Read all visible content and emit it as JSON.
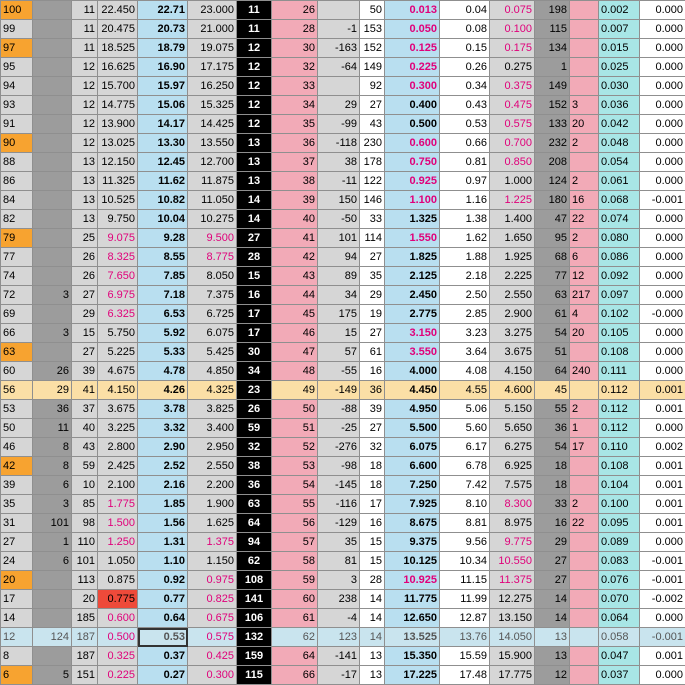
{
  "colors": {
    "orange_strike": "#f7a330",
    "blue_col": "#b9dff0",
    "gray_col": "#d6d6d6",
    "dark_gray_col": "#9c9c9c",
    "pink_col": "#f2aab7",
    "teal_col": "#a8e6e6",
    "strike_black": "#000000",
    "pink_text": "#e0007a",
    "current_row": "#fbdfa6",
    "red_cell": "#ee4a3a"
  },
  "ladder": {
    "rows": [
      {
        "c": [
          "100",
          "",
          "11",
          "22.450",
          "22.71",
          "23.000",
          "11",
          "26",
          "",
          "50",
          "0.013",
          "0.04",
          "0.075",
          "198",
          "",
          "0.002",
          "0.000"
        ],
        "hl": true,
        "pink": [
          10,
          12
        ]
      },
      {
        "c": [
          "99",
          "",
          "11",
          "20.475",
          "20.73",
          "21.000",
          "11",
          "28",
          "-1",
          "153",
          "0.050",
          "0.08",
          "0.100",
          "115",
          "",
          "0.007",
          "0.000"
        ],
        "pink": [
          10,
          12
        ]
      },
      {
        "c": [
          "97",
          "",
          "11",
          "18.525",
          "18.79",
          "19.075",
          "12",
          "30",
          "-163",
          "152",
          "0.125",
          "0.15",
          "0.175",
          "134",
          "",
          "0.015",
          "0.000"
        ],
        "hl": true,
        "pink": [
          10,
          12
        ]
      },
      {
        "c": [
          "95",
          "",
          "12",
          "16.625",
          "16.90",
          "17.175",
          "12",
          "32",
          "-64",
          "149",
          "0.225",
          "0.26",
          "0.275",
          "1",
          "",
          "0.025",
          "0.000"
        ],
        "pink": [
          10
        ]
      },
      {
        "c": [
          "94",
          "",
          "12",
          "15.700",
          "15.97",
          "16.250",
          "12",
          "33",
          "",
          "92",
          "0.300",
          "0.34",
          "0.375",
          "149",
          "",
          "0.030",
          "0.000"
        ],
        "pink": [
          10,
          12
        ]
      },
      {
        "c": [
          "93",
          "",
          "12",
          "14.775",
          "15.06",
          "15.325",
          "12",
          "34",
          "29",
          "27",
          "0.400",
          "0.43",
          "0.475",
          "152",
          "3",
          "0.036",
          "0.000"
        ],
        "pink": [
          12
        ]
      },
      {
        "c": [
          "91",
          "",
          "12",
          "13.900",
          "14.17",
          "14.425",
          "12",
          "35",
          "-99",
          "43",
          "0.500",
          "0.53",
          "0.575",
          "133",
          "20",
          "0.042",
          "0.000"
        ],
        "pink": [
          12
        ]
      },
      {
        "c": [
          "90",
          "",
          "12",
          "13.025",
          "13.30",
          "13.550",
          "13",
          "36",
          "-118",
          "230",
          "0.600",
          "0.66",
          "0.700",
          "232",
          "2",
          "0.048",
          "0.000"
        ],
        "hl": true,
        "pink": [
          10,
          12
        ]
      },
      {
        "c": [
          "88",
          "",
          "13",
          "12.150",
          "12.45",
          "12.700",
          "13",
          "37",
          "38",
          "178",
          "0.750",
          "0.81",
          "0.850",
          "208",
          "",
          "0.054",
          "0.000"
        ],
        "pink": [
          10,
          12
        ]
      },
      {
        "c": [
          "86",
          "",
          "13",
          "11.325",
          "11.62",
          "11.875",
          "13",
          "38",
          "-11",
          "122",
          "0.925",
          "0.97",
          "1.000",
          "124",
          "2",
          "0.061",
          "0.000"
        ],
        "pink": [
          10
        ]
      },
      {
        "c": [
          "84",
          "",
          "13",
          "10.525",
          "10.82",
          "11.050",
          "14",
          "39",
          "150",
          "146",
          "1.100",
          "1.16",
          "1.225",
          "180",
          "16",
          "0.068",
          "-0.001"
        ],
        "pink": [
          10,
          12
        ]
      },
      {
        "c": [
          "82",
          "",
          "13",
          "9.750",
          "10.04",
          "10.275",
          "14",
          "40",
          "-50",
          "33",
          "1.325",
          "1.38",
          "1.400",
          "47",
          "22",
          "0.074",
          "0.000"
        ]
      },
      {
        "c": [
          "79",
          "",
          "25",
          "9.075",
          "9.28",
          "9.500",
          "27",
          "41",
          "101",
          "114",
          "1.550",
          "1.62",
          "1.650",
          "95",
          "2",
          "0.080",
          "0.000"
        ],
        "hl": true,
        "pink": [
          3,
          5,
          10
        ]
      },
      {
        "c": [
          "77",
          "",
          "26",
          "8.325",
          "8.55",
          "8.775",
          "28",
          "42",
          "94",
          "27",
          "1.825",
          "1.88",
          "1.925",
          "68",
          "6",
          "0.086",
          "0.000"
        ],
        "pink": [
          3,
          5
        ]
      },
      {
        "c": [
          "74",
          "",
          "26",
          "7.650",
          "7.85",
          "8.050",
          "15",
          "43",
          "89",
          "35",
          "2.125",
          "2.18",
          "2.225",
          "77",
          "12",
          "0.092",
          "0.000"
        ],
        "pink": [
          3
        ]
      },
      {
        "c": [
          "72",
          "3",
          "27",
          "6.975",
          "7.18",
          "7.375",
          "16",
          "44",
          "34",
          "29",
          "2.450",
          "2.50",
          "2.550",
          "63",
          "217",
          "0.097",
          "0.000"
        ],
        "pink": [
          3
        ]
      },
      {
        "c": [
          "69",
          "",
          "29",
          "6.325",
          "6.53",
          "6.725",
          "17",
          "45",
          "175",
          "19",
          "2.775",
          "2.85",
          "2.900",
          "61",
          "4",
          "0.102",
          "-0.000"
        ],
        "pink": [
          3
        ]
      },
      {
        "c": [
          "66",
          "3",
          "15",
          "5.750",
          "5.92",
          "6.075",
          "17",
          "46",
          "15",
          "27",
          "3.150",
          "3.23",
          "3.275",
          "54",
          "20",
          "0.105",
          "0.000"
        ],
        "pink": [
          10
        ]
      },
      {
        "c": [
          "63",
          "",
          "27",
          "5.225",
          "5.33",
          "5.425",
          "30",
          "47",
          "57",
          "61",
          "3.550",
          "3.64",
          "3.675",
          "51",
          "",
          "0.108",
          "0.000"
        ],
        "hl": true,
        "pink": [
          10
        ]
      },
      {
        "c": [
          "60",
          "26",
          "39",
          "4.675",
          "4.78",
          "4.850",
          "34",
          "48",
          "-55",
          "16",
          "4.000",
          "4.08",
          "4.150",
          "64",
          "240",
          "0.111",
          "0.000"
        ]
      },
      {
        "c": [
          "56",
          "29",
          "41",
          "4.150",
          "4.26",
          "4.325",
          "23",
          "49",
          "-149",
          "36",
          "4.450",
          "4.55",
          "4.600",
          "45",
          "",
          "0.112",
          "0.001"
        ],
        "mid": true
      },
      {
        "c": [
          "53",
          "36",
          "37",
          "3.675",
          "3.78",
          "3.825",
          "26",
          "50",
          "-88",
          "39",
          "4.950",
          "5.06",
          "5.150",
          "55",
          "2",
          "0.112",
          "0.001"
        ]
      },
      {
        "c": [
          "50",
          "11",
          "40",
          "3.225",
          "3.32",
          "3.400",
          "59",
          "51",
          "-25",
          "27",
          "5.500",
          "5.60",
          "5.650",
          "36",
          "1",
          "0.112",
          "0.000"
        ]
      },
      {
        "c": [
          "46",
          "8",
          "43",
          "2.800",
          "2.90",
          "2.950",
          "32",
          "52",
          "-276",
          "32",
          "6.075",
          "6.17",
          "6.275",
          "54",
          "17",
          "0.110",
          "0.002"
        ]
      },
      {
        "c": [
          "42",
          "8",
          "59",
          "2.425",
          "2.52",
          "2.550",
          "38",
          "53",
          "-98",
          "18",
          "6.600",
          "6.78",
          "6.925",
          "18",
          "",
          "0.108",
          "0.001"
        ],
        "hl": true
      },
      {
        "c": [
          "39",
          "6",
          "10",
          "2.100",
          "2.16",
          "2.200",
          "36",
          "54",
          "-145",
          "18",
          "7.250",
          "7.42",
          "7.575",
          "18",
          "",
          "0.104",
          "0.001"
        ]
      },
      {
        "c": [
          "35",
          "3",
          "85",
          "1.775",
          "1.85",
          "1.900",
          "63",
          "55",
          "-116",
          "17",
          "7.925",
          "8.10",
          "8.300",
          "33",
          "2",
          "0.100",
          "0.001"
        ],
        "pink": [
          3,
          12
        ]
      },
      {
        "c": [
          "31",
          "101",
          "98",
          "1.500",
          "1.56",
          "1.625",
          "64",
          "56",
          "-129",
          "16",
          "8.675",
          "8.81",
          "8.975",
          "16",
          "22",
          "0.095",
          "0.001"
        ],
        "pink": [
          3
        ]
      },
      {
        "c": [
          "27",
          "1",
          "110",
          "1.250",
          "1.31",
          "1.375",
          "94",
          "57",
          "35",
          "15",
          "9.375",
          "9.56",
          "9.775",
          "29",
          "",
          "0.089",
          "0.000"
        ],
        "pink": [
          3,
          5,
          12
        ]
      },
      {
        "c": [
          "24",
          "6",
          "101",
          "1.050",
          "1.10",
          "1.150",
          "62",
          "58",
          "81",
          "15",
          "10.125",
          "10.34",
          "10.550",
          "27",
          "",
          "0.083",
          "-0.001"
        ],
        "pink": [
          12
        ]
      },
      {
        "c": [
          "20",
          "",
          "113",
          "0.875",
          "0.92",
          "0.975",
          "108",
          "59",
          "3",
          "28",
          "10.925",
          "11.15",
          "11.375",
          "27",
          "",
          "0.076",
          "-0.001"
        ],
        "hl": true,
        "pink": [
          5,
          10,
          12
        ]
      },
      {
        "c": [
          "17",
          "",
          "20",
          "0.775",
          "0.77",
          "0.825",
          "141",
          "60",
          "238",
          "14",
          "11.775",
          "11.99",
          "12.275",
          "14",
          "",
          "0.070",
          "-0.002"
        ],
        "red": 3,
        "pink": [
          5
        ]
      },
      {
        "c": [
          "14",
          "",
          "185",
          "0.600",
          "0.64",
          "0.675",
          "106",
          "61",
          "-4",
          "14",
          "12.650",
          "12.87",
          "13.150",
          "14",
          "",
          "0.064",
          "0.000"
        ],
        "pink": [
          3,
          5
        ]
      },
      {
        "c": [
          "12",
          "124",
          "187",
          "0.500",
          "0.53",
          "0.575",
          "132",
          "62",
          "123",
          "14",
          "13.525",
          "13.76",
          "14.050",
          "13",
          "",
          "0.058",
          "-0.001"
        ],
        "lite": true,
        "sel": 4,
        "pink": [
          3,
          5
        ]
      },
      {
        "c": [
          "8",
          "",
          "187",
          "0.325",
          "0.37",
          "0.425",
          "159",
          "64",
          "-141",
          "13",
          "15.350",
          "15.59",
          "15.900",
          "13",
          "",
          "0.047",
          "0.001"
        ],
        "pink": [
          3,
          5
        ]
      },
      {
        "c": [
          "6",
          "5",
          "151",
          "0.225",
          "0.27",
          "0.300",
          "115",
          "66",
          "-17",
          "13",
          "17.225",
          "17.48",
          "17.775",
          "12",
          "",
          "0.037",
          "0.000"
        ],
        "hl": true,
        "pink": [
          3,
          5
        ]
      }
    ]
  }
}
